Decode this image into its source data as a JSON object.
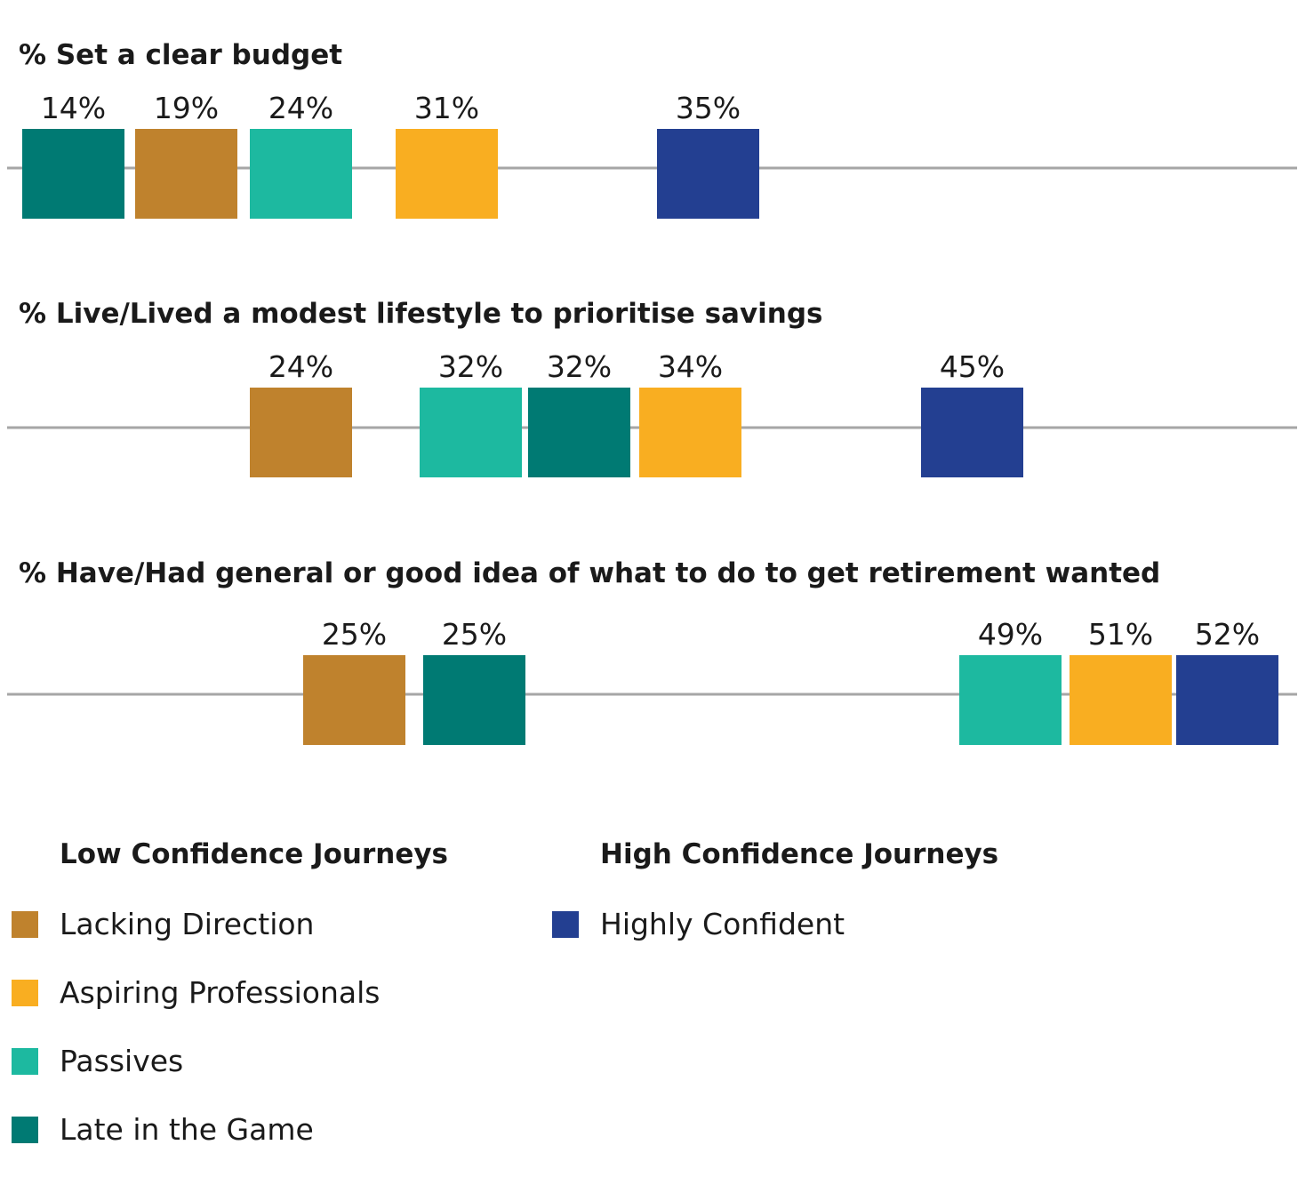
{
  "chart_data": {
    "type": "dot-strip",
    "xlim": [
      10,
      54
    ],
    "groups": [
      {
        "name": "Lacking Direction",
        "color": "#bf822d",
        "journey": "Low Confidence Journeys"
      },
      {
        "name": "Aspiring Professionals",
        "color": "#f9ae21",
        "journey": "Low Confidence Journeys"
      },
      {
        "name": "Passives",
        "color": "#1db9a0",
        "journey": "Low Confidence Journeys"
      },
      {
        "name": "Late in the Game",
        "color": "#007a73",
        "journey": "Low Confidence Journeys"
      },
      {
        "name": "Highly Confident",
        "color": "#233f91",
        "journey": "High Confidence Journeys"
      }
    ],
    "panels": [
      {
        "title": "% Set a clear budget",
        "values": {
          "Late in the Game": 14,
          "Lacking Direction": 19,
          "Passives": 24,
          "Aspiring Professionals": 31,
          "Highly Confident": 35
        },
        "labels": {
          "Late in the Game": "14%",
          "Lacking Direction": "19%",
          "Passives": "24%",
          "Aspiring Professionals": "31%",
          "Highly Confident": "35%"
        }
      },
      {
        "title": "% Live/Lived a modest lifestyle to prioritise savings",
        "values": {
          "Lacking Direction": 24,
          "Passives": 32,
          "Late in the Game": 32,
          "Aspiring Professionals": 34,
          "Highly Confident": 45
        },
        "labels": {
          "Lacking Direction": "24%",
          "Passives": "32%",
          "Late in the Game": "32%",
          "Aspiring Professionals": "34%",
          "Highly Confident": "45%"
        }
      },
      {
        "title": "% Have/Had general or good idea of what to do to get retirement wanted",
        "values": {
          "Lacking Direction": 25,
          "Late in the Game": 25,
          "Passives": 49,
          "Aspiring Professionals": 51,
          "Highly Confident": 52
        },
        "labels": {
          "Lacking Direction": "25%",
          "Late in the Game": "25%",
          "Passives": "49%",
          "Aspiring Professionals": "51%",
          "Highly Confident": "52%"
        }
      }
    ],
    "legend": {
      "placement": "bottom",
      "headings": [
        "Low Confidence Journeys",
        "High Confidence Journeys"
      ]
    }
  }
}
